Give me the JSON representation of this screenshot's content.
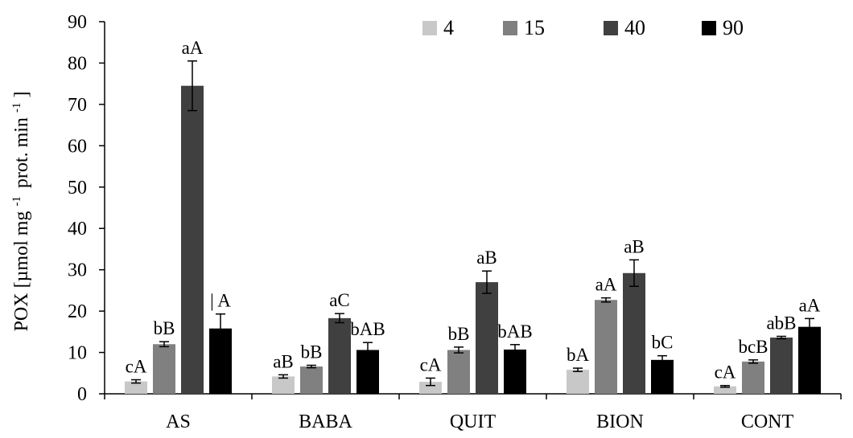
{
  "chart_data": {
    "type": "bar",
    "ylabel": "POX [µmol mg",
    "ylabel_sup1": "-1",
    "ylabel_mid": "prot. min",
    "ylabel_sup2": "-1",
    "ylabel_end": "]",
    "ylim": [
      0,
      90
    ],
    "yticks": [
      0,
      10,
      20,
      30,
      40,
      50,
      60,
      70,
      80,
      90
    ],
    "categories": [
      "AS",
      "BABA",
      "QUIT",
      "BION",
      "CONT"
    ],
    "legend_position": "top-right",
    "grid": false,
    "series": [
      {
        "name": "4",
        "color": "#c8c8c8",
        "values": [
          3.0,
          4.2,
          2.9,
          5.8,
          1.8
        ],
        "errors": [
          0.4,
          0.4,
          0.9,
          0.4,
          0.2
        ],
        "labels": [
          "cA",
          "aB",
          "cA",
          "bA",
          "cA"
        ]
      },
      {
        "name": "15",
        "color": "#808080",
        "values": [
          12.0,
          6.6,
          10.6,
          22.7,
          7.8
        ],
        "errors": [
          0.6,
          0.3,
          0.7,
          0.5,
          0.4
        ],
        "labels": [
          "bB",
          "bB",
          "bB",
          "aA",
          "bcB"
        ]
      },
      {
        "name": "40",
        "color": "#404040",
        "values": [
          74.5,
          18.3,
          27.0,
          29.2,
          13.6
        ],
        "errors": [
          6.0,
          1.1,
          2.7,
          3.2,
          0.3
        ],
        "labels": [
          "aA",
          "aC",
          "aB",
          "aB",
          "abB"
        ]
      },
      {
        "name": "90",
        "color": "#000000",
        "values": [
          15.8,
          10.6,
          10.7,
          8.2,
          16.2
        ],
        "errors": [
          3.5,
          1.8,
          1.2,
          1.0,
          2.0
        ],
        "labels": [
          "| A",
          "bAB",
          "bAB",
          "bC",
          "aA"
        ]
      }
    ]
  }
}
